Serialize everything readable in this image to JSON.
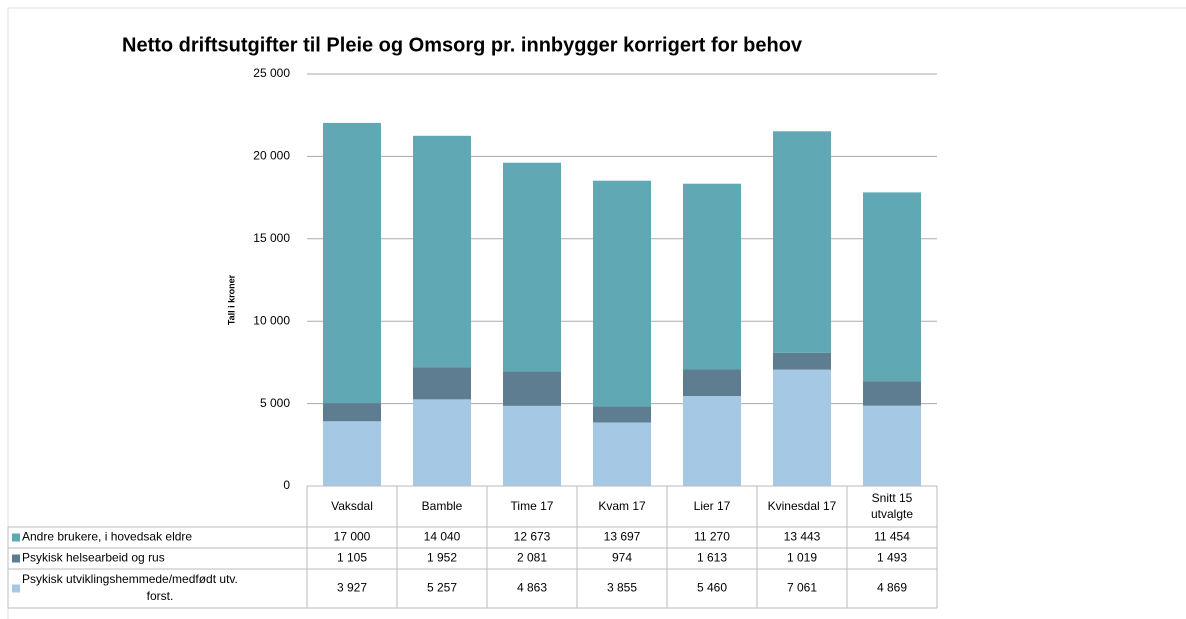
{
  "chart_data": {
    "type": "stacked_bar",
    "title": "Netto driftsutgifter til Pleie og Omsorg pr.  innbygger korrigert for behov",
    "ylabel": "Tall i kroner",
    "categories": [
      "Vaksdal",
      "Bamble",
      "Time 17",
      "Kvam 17",
      "Lier 17",
      "Kvinesdal 17",
      "Snitt 15 utvalgte"
    ],
    "series": [
      {
        "name": "Andre brukere, i hovedsak eldre",
        "color": "#5fa8b4",
        "values": [
          17000,
          14040,
          12673,
          13697,
          11270,
          13443,
          11454
        ],
        "value_labels": [
          "17 000",
          "14 040",
          "12 673",
          "13 697",
          "11 270",
          "13 443",
          "11 454"
        ]
      },
      {
        "name": "Psykisk helsearbeid og rus",
        "color": "#5f7d91",
        "values": [
          1105,
          1952,
          2081,
          974,
          1613,
          1019,
          1493
        ],
        "value_labels": [
          "1 105",
          "1 952",
          "2 081",
          "974",
          "1 613",
          "1 019",
          "1 493"
        ]
      },
      {
        "name": "Psykisk utviklingshemmede/medfødt utv. forst.",
        "color": "#a5c8e4",
        "values": [
          3927,
          5257,
          4863,
          3855,
          5460,
          7061,
          4869
        ],
        "value_labels": [
          "3 927",
          "5 257",
          "4 863",
          "3 855",
          "5 460",
          "7 061",
          "4 869"
        ]
      }
    ],
    "ylim": [
      0,
      25000
    ],
    "yticks": [
      0,
      {
        "value": 5000,
        "label": "5 000"
      },
      {
        "value": 10000,
        "label": "10 000"
      },
      {
        "value": 15000,
        "label": "15 000"
      },
      {
        "value": 20000,
        "label": "20 000"
      },
      {
        "value": 25000,
        "label": "25 000"
      }
    ],
    "grid": true
  }
}
